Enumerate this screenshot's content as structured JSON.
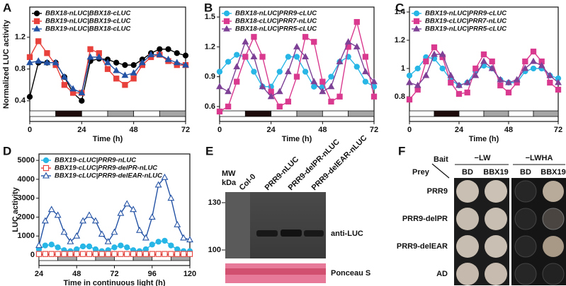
{
  "panel_labels": [
    "A",
    "B",
    "C",
    "D",
    "E",
    "F"
  ],
  "chart_data": [
    {
      "type": "line",
      "y_label": "Normalized LUC activity",
      "x_label": "Time (h)",
      "xlim": [
        0,
        72
      ],
      "xticks": [
        0,
        24,
        48,
        72
      ],
      "ylim": [
        0.14,
        1.58
      ],
      "yticks": [
        0.4,
        0.8,
        1.2
      ],
      "light_bar": [
        {
          "start": 0,
          "end": 12,
          "color": "#ffffff"
        },
        {
          "start": 12,
          "end": 24,
          "color": "#1e0b0b"
        },
        {
          "start": 24,
          "end": 36,
          "color": "#ffffff"
        },
        {
          "start": 36,
          "end": 48,
          "color": "#a6a6a6"
        },
        {
          "start": 48,
          "end": 60,
          "color": "#ffffff"
        },
        {
          "start": 60,
          "end": 72,
          "color": "#a6a6a6"
        }
      ],
      "x": [
        0,
        4,
        8,
        12,
        16,
        20,
        24,
        28,
        32,
        36,
        40,
        44,
        48,
        52,
        56,
        60,
        64,
        68,
        72
      ],
      "series": [
        {
          "name": "BBX18-nLUC|BBX18-cLUC",
          "color": "#000000",
          "marker": "circle",
          "filled": true,
          "values": [
            0.45,
            0.88,
            0.88,
            0.88,
            0.7,
            0.5,
            0.4,
            0.9,
            0.93,
            0.92,
            0.88,
            0.85,
            0.85,
            0.92,
            1.0,
            1.05,
            1.05,
            1.0,
            0.97
          ]
        },
        {
          "name": "BBX19-nLUC|BBX19-cLUC",
          "color": "#e8403a",
          "marker": "square",
          "filled": true,
          "values": [
            0.95,
            1.15,
            1.0,
            0.85,
            0.6,
            0.5,
            0.5,
            1.05,
            1.0,
            0.8,
            0.68,
            0.6,
            0.68,
            0.85,
            0.95,
            0.98,
            0.9,
            0.85,
            0.85
          ]
        },
        {
          "name": "BBX19-nLUC|BBX18-cLUC",
          "color": "#2352a4",
          "marker": "triangle",
          "filled": true,
          "values": [
            0.88,
            0.9,
            0.88,
            0.88,
            0.7,
            0.55,
            0.5,
            0.95,
            0.95,
            0.88,
            0.78,
            0.72,
            0.75,
            0.88,
            0.98,
            0.98,
            0.92,
            0.88,
            0.85
          ]
        }
      ]
    },
    {
      "type": "line",
      "x_label": "Time (h)",
      "xlim": [
        0,
        72
      ],
      "xticks": [
        0,
        24,
        48,
        72
      ],
      "ylim": [
        0.45,
        1.6
      ],
      "yticks": [
        0.6,
        0.9,
        1.2,
        1.5
      ],
      "light_bar": [
        {
          "start": 0,
          "end": 12,
          "color": "#ffffff"
        },
        {
          "start": 12,
          "end": 24,
          "color": "#1e0b0b"
        },
        {
          "start": 24,
          "end": 36,
          "color": "#ffffff"
        },
        {
          "start": 36,
          "end": 48,
          "color": "#a6a6a6"
        },
        {
          "start": 48,
          "end": 60,
          "color": "#ffffff"
        },
        {
          "start": 60,
          "end": 72,
          "color": "#a6a6a6"
        }
      ],
      "x": [
        0,
        4,
        8,
        12,
        16,
        20,
        24,
        28,
        32,
        36,
        40,
        44,
        48,
        52,
        56,
        60,
        64,
        68,
        72
      ],
      "series": [
        {
          "name": "BBX18-nLUC|PRR9-cLUC",
          "color": "#27b6e6",
          "marker": "circle",
          "filled": true,
          "values": [
            0.95,
            1.05,
            1.12,
            1.1,
            0.95,
            0.8,
            0.8,
            0.95,
            1.1,
            1.1,
            0.95,
            0.8,
            0.8,
            0.9,
            1.05,
            1.1,
            1.0,
            0.85,
            0.8
          ]
        },
        {
          "name": "BBX18-cLUC|PRR7-nLUC",
          "color": "#d93a8f",
          "marker": "square",
          "filled": true,
          "values": [
            0.55,
            0.6,
            0.85,
            1.1,
            1.3,
            1.1,
            0.75,
            0.6,
            0.65,
            0.9,
            1.3,
            1.25,
            0.85,
            0.65,
            0.7,
            1.2,
            1.45,
            1.1,
            0.7
          ]
        },
        {
          "name": "BBX18-nLUC|PRR5-cLUC",
          "color": "#7d4196",
          "marker": "triangle",
          "filled": true,
          "values": [
            0.8,
            0.75,
            1.0,
            1.25,
            1.1,
            0.8,
            0.7,
            0.75,
            0.95,
            1.2,
            1.1,
            0.85,
            0.75,
            0.8,
            1.05,
            1.25,
            1.2,
            0.95,
            0.85
          ]
        }
      ]
    },
    {
      "type": "line",
      "x_label": "Time (h)",
      "xlim": [
        0,
        72
      ],
      "xticks": [
        0,
        24,
        48,
        72
      ],
      "ylim": [
        0.625,
        1.435
      ],
      "yticks": [
        0.8,
        1.0,
        1.2,
        1.4
      ],
      "light_bar": [
        {
          "start": 0,
          "end": 12,
          "color": "#ffffff"
        },
        {
          "start": 12,
          "end": 24,
          "color": "#1e0b0b"
        },
        {
          "start": 24,
          "end": 36,
          "color": "#ffffff"
        },
        {
          "start": 36,
          "end": 48,
          "color": "#a6a6a6"
        },
        {
          "start": 48,
          "end": 60,
          "color": "#ffffff"
        },
        {
          "start": 60,
          "end": 72,
          "color": "#a6a6a6"
        }
      ],
      "x": [
        0,
        4,
        8,
        12,
        16,
        20,
        24,
        28,
        32,
        36,
        40,
        44,
        48,
        52,
        56,
        60,
        64,
        68,
        72
      ],
      "series": [
        {
          "name": "BBX19-nLUC|PRR9-cLUC",
          "color": "#27b6e6",
          "marker": "circle",
          "filled": true,
          "values": [
            0.95,
            1.0,
            1.08,
            1.07,
            1.0,
            0.92,
            0.88,
            0.9,
            0.98,
            1.02,
            1.0,
            0.92,
            0.9,
            0.9,
            0.98,
            1.0,
            1.0,
            0.95,
            0.93
          ]
        },
        {
          "name": "BBX19-cLUC|PRR7-nLUC",
          "color": "#d93a8f",
          "marker": "square",
          "filled": true,
          "values": [
            0.78,
            0.85,
            1.05,
            1.15,
            1.08,
            0.9,
            0.82,
            0.83,
            1.0,
            1.1,
            1.05,
            0.88,
            0.83,
            0.9,
            1.05,
            1.12,
            1.05,
            0.9,
            0.85
          ]
        },
        {
          "name": "BBX19-nLUC|PRR5-cLUC",
          "color": "#7d4196",
          "marker": "triangle",
          "filled": true,
          "values": [
            0.9,
            0.88,
            0.95,
            1.1,
            1.1,
            0.95,
            0.88,
            0.9,
            0.95,
            1.05,
            1.0,
            0.92,
            0.9,
            0.92,
            1.0,
            1.05,
            1.02,
            0.95,
            0.9
          ]
        }
      ]
    },
    {
      "type": "line",
      "y_label": "LUC activity",
      "x_label": "Time in continuous light (h)",
      "xlim": [
        24,
        120
      ],
      "xticks": [
        24,
        48,
        72,
        96,
        120
      ],
      "ylim": [
        -560,
        5340
      ],
      "yticks": [
        0,
        1000,
        2000,
        3000,
        4000,
        5000
      ],
      "light_bar": [
        {
          "start": 24,
          "end": 36,
          "color": "#ffffff"
        },
        {
          "start": 36,
          "end": 48,
          "color": "#a6a6a6"
        },
        {
          "start": 48,
          "end": 60,
          "color": "#ffffff"
        },
        {
          "start": 60,
          "end": 72,
          "color": "#a6a6a6"
        },
        {
          "start": 72,
          "end": 84,
          "color": "#ffffff"
        },
        {
          "start": 84,
          "end": 96,
          "color": "#a6a6a6"
        },
        {
          "start": 96,
          "end": 108,
          "color": "#ffffff"
        },
        {
          "start": 108,
          "end": 120,
          "color": "#a6a6a6"
        }
      ],
      "x": [
        24,
        28,
        32,
        36,
        40,
        44,
        48,
        52,
        56,
        60,
        64,
        68,
        72,
        76,
        80,
        84,
        88,
        92,
        96,
        100,
        104,
        108,
        112,
        116,
        120
      ],
      "series": [
        {
          "name": "BBX19-cLUC|PRR9-nLUC",
          "color": "#27b6e6",
          "marker": "circle",
          "filled": true,
          "values": [
            300,
            500,
            550,
            400,
            250,
            200,
            300,
            450,
            450,
            300,
            200,
            250,
            400,
            500,
            400,
            250,
            200,
            300,
            550,
            700,
            750,
            500,
            300,
            200,
            200
          ]
        },
        {
          "name": "BBX19-cLUC|PRR9-delPR-nLUC",
          "color": "#e8403a",
          "marker": "square",
          "filled": false,
          "values": [
            50,
            50,
            50,
            50,
            50,
            50,
            50,
            50,
            50,
            50,
            50,
            50,
            50,
            50,
            50,
            50,
            50,
            50,
            50,
            50,
            50,
            50,
            50,
            50,
            50
          ]
        },
        {
          "name": "BBX19-cLUC|PRR9-delEAR-nLUC",
          "color": "#2352a4",
          "marker": "triangle",
          "filled": false,
          "values": [
            500,
            1800,
            2400,
            2100,
            1200,
            700,
            1000,
            1800,
            2100,
            1800,
            1100,
            700,
            1200,
            2200,
            2700,
            2400,
            1300,
            900,
            2000,
            3700,
            4100,
            3000,
            1600,
            900,
            800
          ]
        }
      ]
    }
  ],
  "blot": {
    "mw_label": "MW",
    "unit": "kDa",
    "markers": [
      "130",
      "100"
    ],
    "lanes": [
      "Col-0",
      "PRR9-nLUC",
      "PRR9-delPR-nLUC",
      "PRR9-delEAR-nLUC"
    ],
    "antibody": "anti-LUC",
    "stain": "Ponceau S"
  },
  "yeast": {
    "bait": "Bait",
    "prey": "Prey",
    "media": [
      "−LW",
      "−LWHA"
    ],
    "columns": [
      "BD",
      "BBX19",
      "BD",
      "BBX19"
    ],
    "rows": [
      "PRR9",
      "PRR9-delPR",
      "PRR9-delEAR",
      "AD"
    ]
  }
}
